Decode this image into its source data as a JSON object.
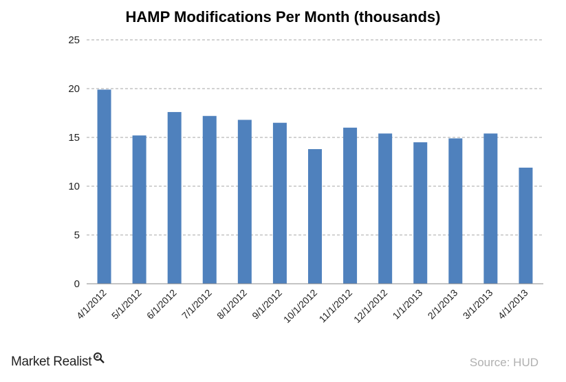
{
  "chart_data": {
    "type": "bar",
    "title": "HAMP Modifications Per Month (thousands)",
    "xlabel": "",
    "ylabel": "",
    "categories": [
      "4/1/2012",
      "5/1/2012",
      "6/1/2012",
      "7/1/2012",
      "8/1/2012",
      "9/1/2012",
      "10/1/2012",
      "11/1/2012",
      "12/1/2012",
      "1/1/2013",
      "2/1/2013",
      "3/1/2013",
      "4/1/2013"
    ],
    "values": [
      19.9,
      15.2,
      17.6,
      17.2,
      16.8,
      16.5,
      13.8,
      16.0,
      15.4,
      14.5,
      14.9,
      15.4,
      11.9
    ],
    "ylim": [
      0,
      25
    ],
    "yticks": [
      0,
      5,
      10,
      15,
      20,
      25
    ],
    "grid": true,
    "bar_color": "#4f81bd",
    "grid_color": "#a6a6a6"
  },
  "branding": {
    "name": "Market Realist",
    "icon": "magnifier-icon"
  },
  "source": "Source: HUD"
}
